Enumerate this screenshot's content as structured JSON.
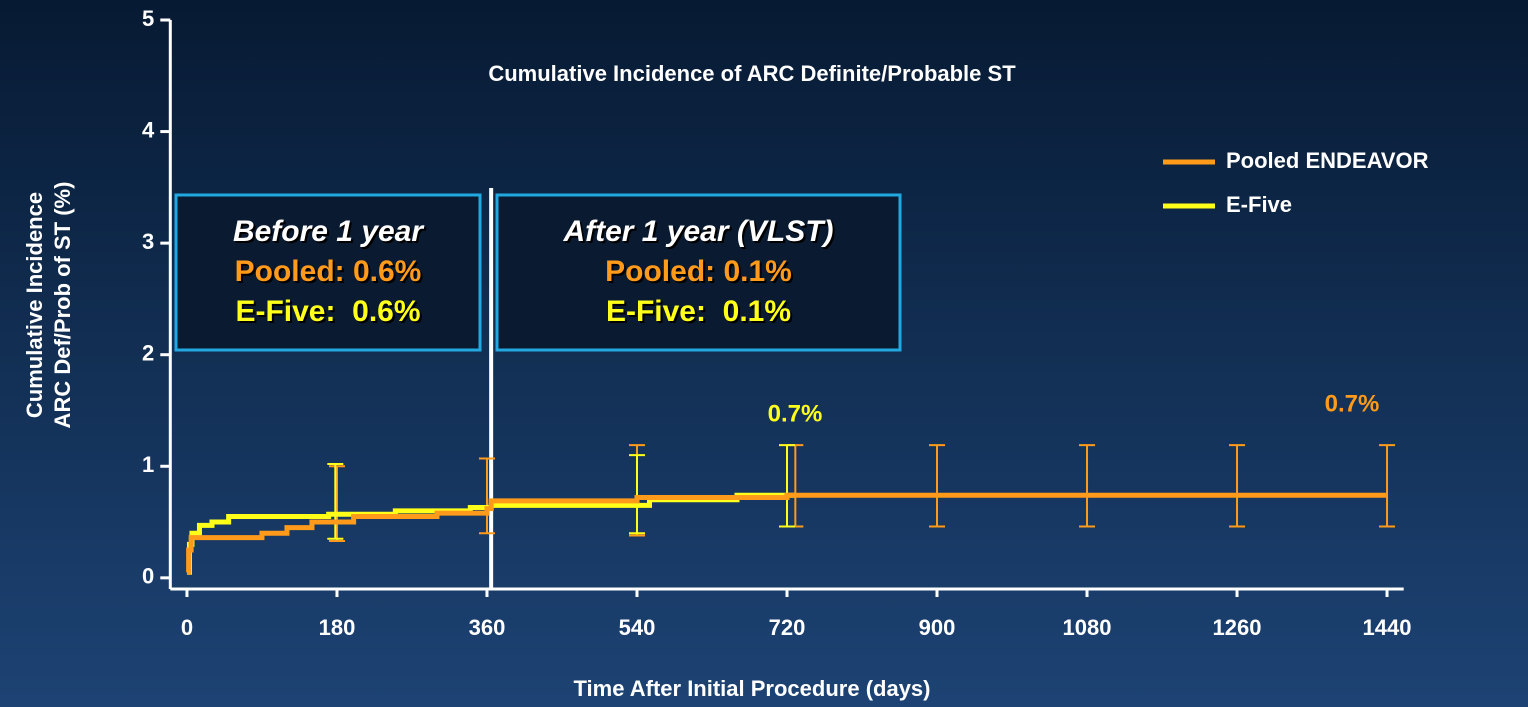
{
  "chart_data": {
    "type": "line",
    "title": "Cumulative Incidence of ARC Definite/Probable ST",
    "y_label_lines": [
      "Cumulative Incidence",
      "ARC Def/Prob of ST (%)"
    ],
    "x_label": "Time After Initial Procedure (days)",
    "xlim": [
      -20,
      1460
    ],
    "ylim": [
      -0.1,
      5
    ],
    "xticks": [
      0,
      180,
      360,
      540,
      720,
      900,
      1080,
      1260,
      1440
    ],
    "yticks": [
      0,
      1,
      2,
      3,
      4,
      5
    ],
    "legend": "upper right",
    "reference_line_x": 365,
    "series": [
      {
        "name": "Pooled ENDEAVOR",
        "color": "#ff9a1a",
        "x": [
          0,
          2,
          2,
          5,
          5,
          90,
          90,
          120,
          120,
          150,
          150,
          200,
          200,
          300,
          300,
          360,
          360,
          365,
          365,
          540,
          540,
          720,
          720,
          1440
        ],
        "values": [
          0.05,
          0.05,
          0.25,
          0.25,
          0.36,
          0.36,
          0.4,
          0.4,
          0.45,
          0.45,
          0.5,
          0.5,
          0.55,
          0.55,
          0.58,
          0.58,
          0.62,
          0.62,
          0.69,
          0.69,
          0.72,
          0.72,
          0.74,
          0.74
        ],
        "errorbars": {
          "x": [
            180,
            360,
            540,
            730,
            900,
            1080,
            1260,
            1440
          ],
          "low": [
            0.33,
            0.4,
            0.38,
            0.46,
            0.46,
            0.46,
            0.46,
            0.46
          ],
          "high": [
            1.0,
            1.07,
            1.19,
            1.19,
            1.19,
            1.19,
            1.19,
            1.19
          ]
        }
      },
      {
        "name": "E-Five",
        "color": "#ffff1a",
        "x": [
          0,
          3,
          3,
          6,
          6,
          15,
          15,
          30,
          30,
          50,
          50,
          170,
          170,
          250,
          250,
          340,
          340,
          365,
          365,
          555,
          555,
          660,
          660,
          730
        ],
        "values": [
          0.05,
          0.05,
          0.3,
          0.3,
          0.4,
          0.4,
          0.47,
          0.47,
          0.5,
          0.5,
          0.55,
          0.55,
          0.57,
          0.57,
          0.6,
          0.6,
          0.63,
          0.63,
          0.65,
          0.65,
          0.7,
          0.7,
          0.74,
          0.74
        ],
        "errorbars": {
          "x": [
            178,
            540,
            720
          ],
          "low": [
            0.35,
            0.4,
            0.46
          ],
          "high": [
            1.02,
            1.1,
            1.19
          ]
        }
      }
    ],
    "annotations": [
      {
        "text": "0.7%",
        "color": "#ffff1a"
      },
      {
        "text": "0.7%",
        "color": "#ff9a1a"
      }
    ],
    "boxes": [
      {
        "lines": [
          {
            "text": "Before 1 year",
            "color": "#ffffff"
          },
          {
            "text": "Pooled: 0.6%",
            "color": "#ff9a1a"
          },
          {
            "text": "E-Five:  0.6%",
            "color": "#ffff1a"
          }
        ]
      },
      {
        "lines": [
          {
            "text": "After 1 year (VLST)",
            "color": "#ffffff"
          },
          {
            "text": "Pooled: 0.1%",
            "color": "#ff9a1a"
          },
          {
            "text": "E-Five:  0.1%",
            "color": "#ffff1a"
          }
        ]
      }
    ]
  }
}
